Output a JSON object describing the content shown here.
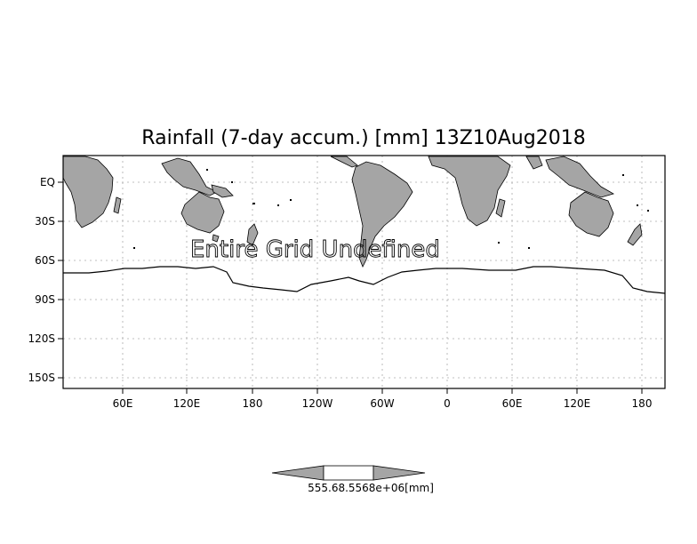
{
  "map": {
    "title": "Rainfall (7-day accum.) [mm] 13Z10Aug2018",
    "undefined_message": "Entire Grid Undefined",
    "lat_ticks": [
      "EQ",
      "30S",
      "60S",
      "90S",
      "120S",
      "150S"
    ],
    "lon_ticks": [
      "60E",
      "120E",
      "180",
      "120W",
      "60W",
      "0",
      "60E",
      "120E",
      "180"
    ],
    "land_color": "#a5a5a5",
    "grid_color": "#aaaaaa"
  },
  "colorbar": {
    "label": "555.68.5568e+06[mm]",
    "left_color": "#a5a5a5",
    "center_color": "#ffffff",
    "right_color": "#a5a5a5"
  }
}
